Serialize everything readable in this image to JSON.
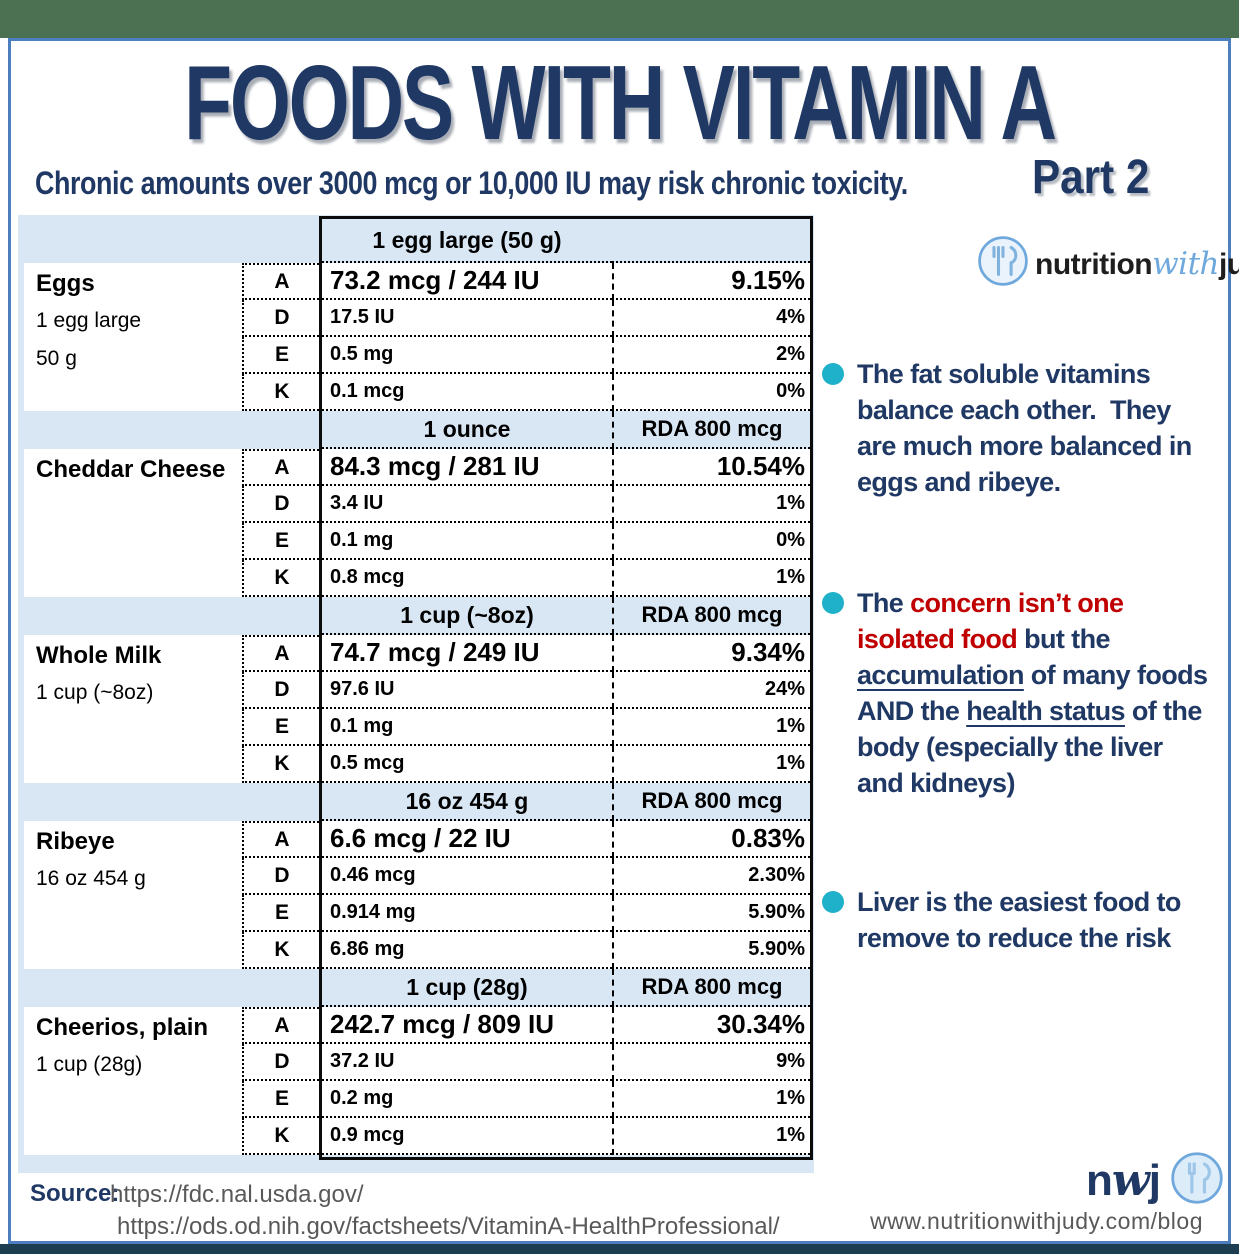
{
  "header": {
    "title": "FOODS WITH VITAMIN A",
    "subtitle": "Chronic amounts over 3000 mcg or 10,000 IU may risk chronic toxicity.",
    "part_label": "Part 2"
  },
  "brand": {
    "prefix": "nutrition",
    "mid": "with",
    "suffix": "judy"
  },
  "colors": {
    "navy": "#1f3864",
    "red": "#c00000",
    "teal_bullet": "#1fb1c9",
    "table_header_bg": "#d9e7f5",
    "frame_border_blue": "#4d7ec0",
    "top_strip_green": "#4b7152",
    "bottom_strip_dark": "#1c3e50",
    "url_gray": "#595959",
    "logo_blue": "#6fa8dc"
  },
  "table": {
    "sections": [
      {
        "food": "Eggs",
        "serving_lines": [
          "1 egg large",
          "50 g"
        ],
        "unit_header": "1 egg large (50 g)",
        "rda_header": "",
        "rows": [
          {
            "vitamin": "A",
            "amount": "73.2 mcg / 244 IU",
            "percent": "9.15%"
          },
          {
            "vitamin": "D",
            "amount": "17.5 IU",
            "percent": "4%"
          },
          {
            "vitamin": "E",
            "amount": "0.5 mg",
            "percent": "2%"
          },
          {
            "vitamin": "K",
            "amount": "0.1 mcg",
            "percent": "0%"
          }
        ]
      },
      {
        "food": "Cheddar Cheese",
        "serving_lines": [],
        "unit_header": "1 ounce",
        "rda_header": "RDA 800 mcg",
        "rows": [
          {
            "vitamin": "A",
            "amount": "84.3 mcg / 281 IU",
            "percent": "10.54%"
          },
          {
            "vitamin": "D",
            "amount": "3.4 IU",
            "percent": "1%"
          },
          {
            "vitamin": "E",
            "amount": "0.1 mg",
            "percent": "0%"
          },
          {
            "vitamin": "K",
            "amount": "0.8 mcg",
            "percent": "1%"
          }
        ]
      },
      {
        "food": "Whole Milk",
        "serving_lines": [
          "1 cup (~8oz)"
        ],
        "unit_header": "1 cup (~8oz)",
        "rda_header": "RDA 800 mcg",
        "rows": [
          {
            "vitamin": "A",
            "amount": "74.7 mcg / 249 IU",
            "percent": "9.34%"
          },
          {
            "vitamin": "D",
            "amount": "97.6 IU",
            "percent": "24%"
          },
          {
            "vitamin": "E",
            "amount": "0.1 mg",
            "percent": "1%"
          },
          {
            "vitamin": "K",
            "amount": "0.5 mcg",
            "percent": "1%"
          }
        ]
      },
      {
        "food": "Ribeye",
        "serving_lines": [
          "16 oz 454 g"
        ],
        "unit_header": "16 oz 454 g",
        "rda_header": "RDA 800 mcg",
        "rows": [
          {
            "vitamin": "A",
            "amount": "6.6 mcg / 22 IU",
            "percent": "0.83%"
          },
          {
            "vitamin": "D",
            "amount": "0.46 mcg",
            "percent": "2.30%"
          },
          {
            "vitamin": "E",
            "amount": "0.914 mg",
            "percent": "5.90%"
          },
          {
            "vitamin": "K",
            "amount": "6.86 mg",
            "percent": "5.90%"
          }
        ]
      },
      {
        "food": "Cheerios, plain",
        "serving_lines": [
          "1 cup (28g)"
        ],
        "unit_header": "1 cup (28g)",
        "rda_header": "RDA 800 mcg",
        "rows": [
          {
            "vitamin": "A",
            "amount": "242.7 mcg / 809 IU",
            "percent": "30.34%"
          },
          {
            "vitamin": "D",
            "amount": "37.2 IU",
            "percent": "9%"
          },
          {
            "vitamin": "E",
            "amount": "0.2 mg",
            "percent": "1%"
          },
          {
            "vitamin": "K",
            "amount": "0.9 mcg",
            "percent": "1%"
          }
        ]
      }
    ]
  },
  "notes": [
    {
      "segments": [
        {
          "text": "The fat soluble vitamins balance each other.  They are much more balanced in eggs and ribeye.",
          "style": ""
        }
      ]
    },
    {
      "segments": [
        {
          "text": "The ",
          "style": ""
        },
        {
          "text": "concern isn’t one isolated food",
          "style": "red"
        },
        {
          "text": " but the ",
          "style": ""
        },
        {
          "text": "accumulation",
          "style": "u"
        },
        {
          "text": " of many foods AND the ",
          "style": ""
        },
        {
          "text": "health status",
          "style": "u"
        },
        {
          "text": " of the body (especially the liver and kidneys)",
          "style": ""
        }
      ]
    },
    {
      "segments": [
        {
          "text": "Liver is the easiest food to remove to reduce the risk",
          "style": ""
        }
      ]
    }
  ],
  "footer": {
    "source_label": "Source:",
    "source_urls": [
      "https://fdc.nal.usda.gov/",
      "https://ods.od.nih.gov/factsheets/VitaminA-HealthProfessional/"
    ],
    "brand_short": "nwj",
    "site_url": "www.nutritionwithjudy.com/blog"
  }
}
